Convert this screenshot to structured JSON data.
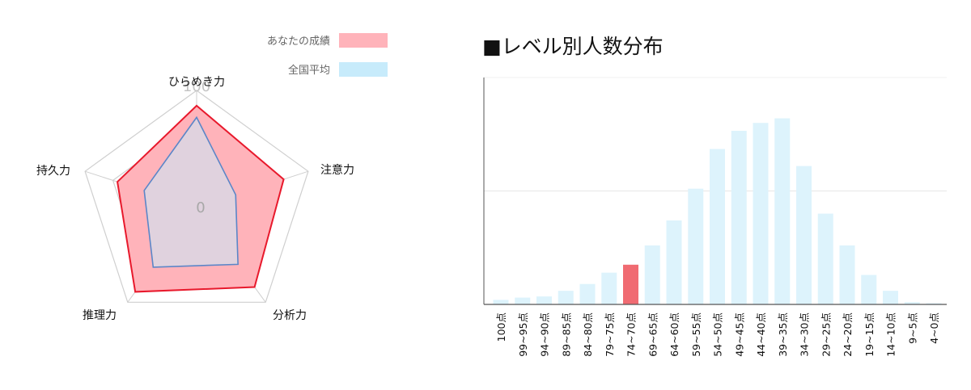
{
  "chart_data": [
    {
      "type": "radar",
      "axes": [
        "ひらめき力",
        "注意力",
        "分析力",
        "推理力",
        "持久力"
      ],
      "range": [
        0,
        100
      ],
      "tick_labels": [
        "100",
        "0"
      ],
      "grid_rings": 4,
      "legend_placement": "top",
      "series": [
        {
          "name": "あなたの成績",
          "values": [
            87,
            78,
            84,
            89,
            71
          ],
          "fill": "#ffb3ba",
          "stroke": "#e8192c"
        },
        {
          "name": "全国平均",
          "values": [
            77,
            35,
            60,
            63,
            47
          ],
          "fill": "#c7ebfb",
          "stroke": "#5b86c8"
        }
      ]
    },
    {
      "type": "bar",
      "title": "■レベル別人数分布",
      "categories": [
        "100点",
        "99~95点",
        "94~90点",
        "89~85点",
        "84~80点",
        "79~75点",
        "74~70点",
        "69~65点",
        "64~60点",
        "59~55点",
        "54~50点",
        "49~45点",
        "44~40点",
        "39~35点",
        "34~30点",
        "29~25点",
        "24~20点",
        "19~15点",
        "14~10点",
        "9~5点",
        "4~0点"
      ],
      "values": [
        2,
        3,
        3.5,
        6,
        9,
        14,
        17.5,
        26,
        37,
        51,
        68.5,
        76.5,
        80,
        82,
        61,
        40,
        26,
        13,
        6,
        1,
        0.5
      ],
      "highlight_index": 6,
      "ylim": [
        0,
        100
      ],
      "gridlines": [
        50
      ],
      "bar_color": "#ddf3fc",
      "highlight_color": "#f06b72"
    }
  ]
}
